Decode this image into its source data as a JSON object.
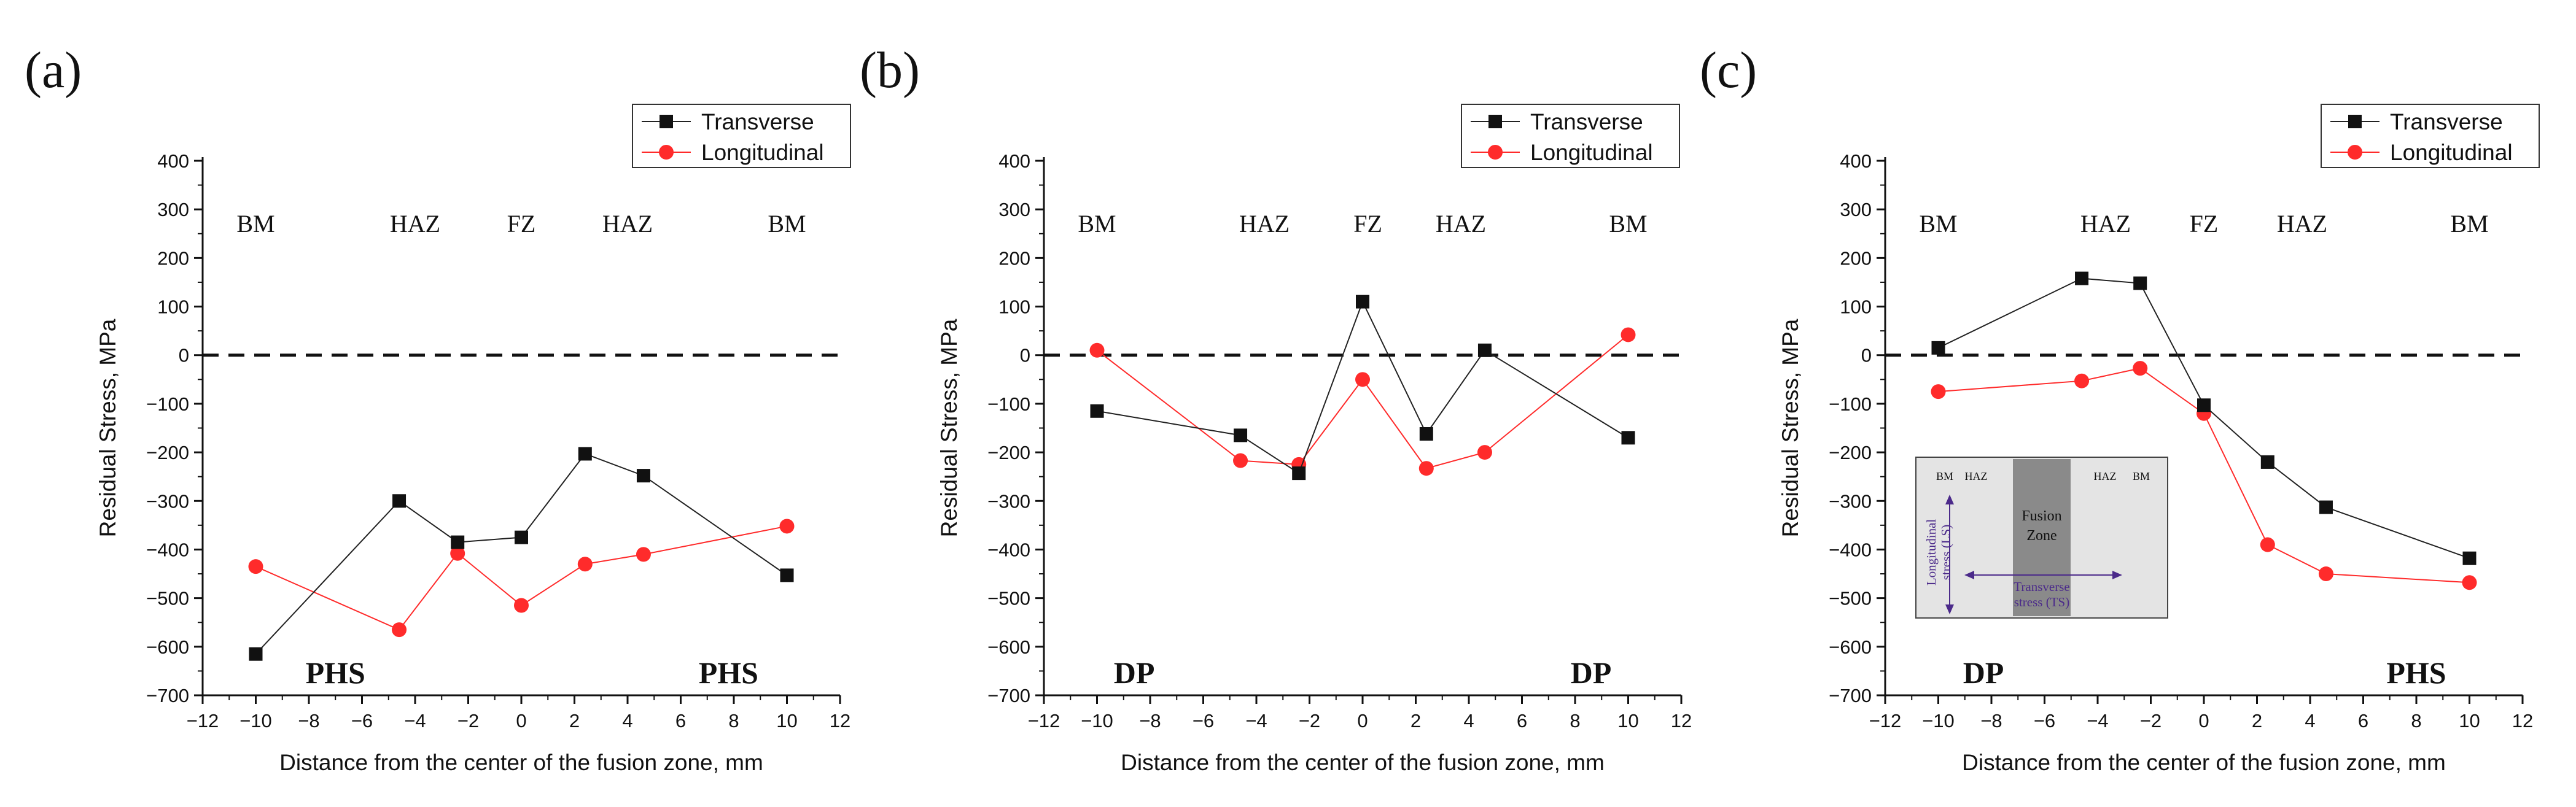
{
  "chart_data": [
    {
      "type": "line",
      "panel_label": "(a)",
      "xlabel": "Distance from the center of the fusion zone, mm",
      "ylabel": "Residual Stress, MPa",
      "xlim": [
        -12,
        12
      ],
      "ylim": [
        -700,
        400
      ],
      "xticks": [
        -12,
        -10,
        -8,
        -6,
        -4,
        -2,
        0,
        2,
        4,
        6,
        8,
        10,
        12
      ],
      "yticks": [
        -700,
        -600,
        -500,
        -400,
        -300,
        -200,
        -100,
        0,
        100,
        200,
        300,
        400
      ],
      "zero_line": "dashed",
      "legend": {
        "position": "top-right",
        "entries": [
          "Transverse",
          "Longitudinal"
        ]
      },
      "zone_labels": [
        {
          "text": "BM",
          "x": -10
        },
        {
          "text": "HAZ",
          "x": -4
        },
        {
          "text": "FZ",
          "x": 0
        },
        {
          "text": "HAZ",
          "x": 4
        },
        {
          "text": "BM",
          "x": 10
        }
      ],
      "material_labels": [
        {
          "text": "PHS",
          "x": -7
        },
        {
          "text": "PHS",
          "x": 7.8
        }
      ],
      "series": [
        {
          "name": "Transverse",
          "color": "#222222",
          "marker": "square",
          "x": [
            -10,
            -4.6,
            -2.4,
            0,
            2.4,
            4.6,
            10
          ],
          "values": [
            -615,
            -300,
            -385,
            -375,
            -203,
            -248,
            -453
          ]
        },
        {
          "name": "Longitudinal",
          "color": "#ff2b2b",
          "marker": "circle",
          "x": [
            -10,
            -4.6,
            -2.4,
            0,
            2.4,
            4.6,
            10
          ],
          "values": [
            -435,
            -565,
            -408,
            -515,
            -430,
            -410,
            -352
          ]
        }
      ]
    },
    {
      "type": "line",
      "panel_label": "(b)",
      "xlabel": "Distance from the center of the fusion zone, mm",
      "ylabel": "Residual Stress, MPa",
      "xlim": [
        -12,
        12
      ],
      "ylim": [
        -700,
        400
      ],
      "xticks": [
        -12,
        -10,
        -8,
        -6,
        -4,
        -2,
        0,
        2,
        4,
        6,
        8,
        10,
        12
      ],
      "yticks": [
        -700,
        -600,
        -500,
        -400,
        -300,
        -200,
        -100,
        0,
        100,
        200,
        300,
        400
      ],
      "zero_line": "dashed",
      "legend": {
        "position": "top-right",
        "entries": [
          "Transverse",
          "Longitudinal"
        ]
      },
      "zone_labels": [
        {
          "text": "BM",
          "x": -10
        },
        {
          "text": "HAZ",
          "x": -3.7
        },
        {
          "text": "FZ",
          "x": 0.2
        },
        {
          "text": "HAZ",
          "x": 3.7
        },
        {
          "text": "BM",
          "x": 10
        }
      ],
      "material_labels": [
        {
          "text": "DP",
          "x": -8.6
        },
        {
          "text": "DP",
          "x": 8.6
        }
      ],
      "series": [
        {
          "name": "Transverse",
          "color": "#222222",
          "marker": "square",
          "x": [
            -10,
            -4.6,
            -2.4,
            0,
            2.4,
            4.6,
            10
          ],
          "values": [
            -115,
            -165,
            -243,
            110,
            -162,
            10,
            -170
          ]
        },
        {
          "name": "Longitudinal",
          "color": "#ff2b2b",
          "marker": "circle",
          "x": [
            -10,
            -4.6,
            -2.4,
            0,
            2.4,
            4.6,
            10
          ],
          "values": [
            10,
            -217,
            -225,
            -50,
            -233,
            -200,
            42
          ]
        }
      ]
    },
    {
      "type": "line",
      "panel_label": "(c)",
      "xlabel": "Distance from the center of the fusion zone, mm",
      "ylabel": "Residual Stress, MPa",
      "xlim": [
        -12,
        12
      ],
      "ylim": [
        -700,
        400
      ],
      "xticks": [
        -12,
        -10,
        -8,
        -6,
        -4,
        -2,
        0,
        2,
        4,
        6,
        8,
        10,
        12
      ],
      "yticks": [
        -700,
        -600,
        -500,
        -400,
        -300,
        -200,
        -100,
        0,
        100,
        200,
        300,
        400
      ],
      "zero_line": "dashed",
      "legend": {
        "position": "top-right",
        "entries": [
          "Transverse",
          "Longitudinal"
        ]
      },
      "zone_labels": [
        {
          "text": "BM",
          "x": -10
        },
        {
          "text": "HAZ",
          "x": -3.7
        },
        {
          "text": "FZ",
          "x": 0
        },
        {
          "text": "HAZ",
          "x": 3.7
        },
        {
          "text": "BM",
          "x": 10
        }
      ],
      "material_labels": [
        {
          "text": "DP",
          "x": -8.3
        },
        {
          "text": "PHS",
          "x": 8
        }
      ],
      "series": [
        {
          "name": "Transverse",
          "color": "#222222",
          "marker": "square",
          "x": [
            -10,
            -4.6,
            -2.4,
            0,
            2.4,
            4.6,
            10
          ],
          "values": [
            15,
            158,
            148,
            -103,
            -220,
            -313,
            -418
          ]
        },
        {
          "name": "Longitudinal",
          "color": "#ff2b2b",
          "marker": "circle",
          "x": [
            -10,
            -4.6,
            -2.4,
            0,
            2.4,
            4.6,
            10
          ],
          "values": [
            -75,
            -53,
            -27,
            -120,
            -390,
            -450,
            -468
          ]
        }
      ],
      "inset": {
        "labels": [
          "BM",
          "HAZ",
          "HAZ",
          "BM"
        ],
        "fusion_zone": "Fusion Zone",
        "longitudinal_label": "Longitudinal stress (LS)",
        "transverse_label": "Transverse stress (TS)"
      }
    }
  ]
}
